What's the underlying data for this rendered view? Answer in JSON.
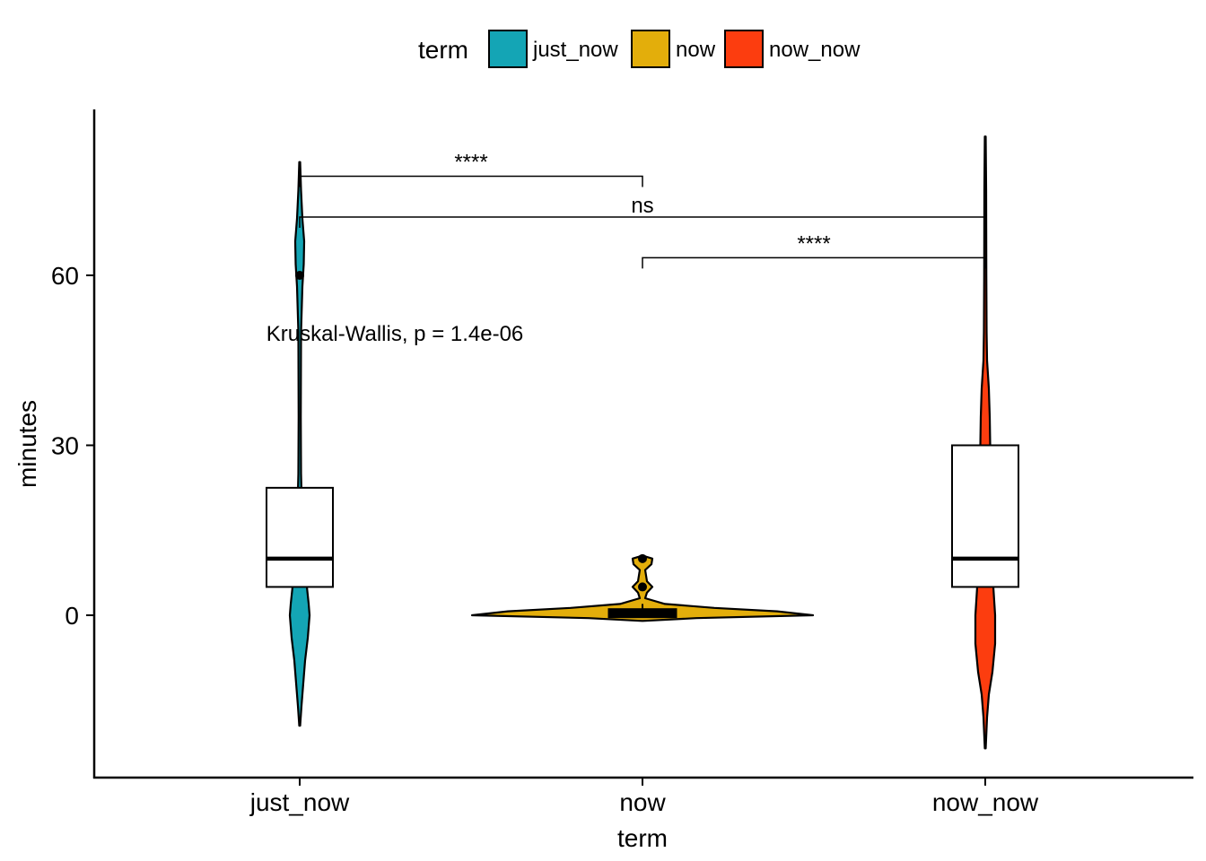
{
  "chart_data": {
    "type": "violin",
    "xlabel": "term",
    "ylabel": "minutes",
    "categories": [
      "just_now",
      "now",
      "now_now"
    ],
    "y_ticks": [
      0,
      30,
      60
    ],
    "ylim": [
      -28.5,
      89.5
    ],
    "grid": false,
    "legend": {
      "title": "term",
      "position": "top",
      "entries": [
        {
          "label": "just_now",
          "color": "#14a5b5"
        },
        {
          "label": "now",
          "color": "#e3ae0b"
        },
        {
          "label": "now_now",
          "color": "#fc3d0f"
        }
      ]
    },
    "series": [
      {
        "category": "just_now",
        "color": "#14a5b5",
        "violin_range": [
          -19.5,
          80
        ],
        "box": {
          "q1": 5,
          "median": 10,
          "q3": 22.5,
          "whisker_low": 0,
          "whisker_high": 60
        },
        "outliers": [
          60
        ]
      },
      {
        "category": "now",
        "color": "#e3ae0b",
        "violin_range": [
          -1,
          10.5
        ],
        "box": {
          "q1": 0,
          "median": 0.5,
          "q3": 1,
          "whisker_low": 0,
          "whisker_high": 2
        },
        "outliers": [
          5,
          10
        ]
      },
      {
        "category": "now_now",
        "color": "#fc3d0f",
        "violin_range": [
          -23.5,
          84.5
        ],
        "box": {
          "q1": 5,
          "median": 10,
          "q3": 30,
          "whisker_low": 0,
          "whisker_high": 60
        },
        "outliers": []
      }
    ],
    "comparisons": [
      {
        "group1": "just_now",
        "group2": "now",
        "label": "****",
        "y": 77.5
      },
      {
        "group1": "just_now",
        "group2": "now_now",
        "label": "ns",
        "y": 70.3
      },
      {
        "group1": "now",
        "group2": "now_now",
        "label": "****",
        "y": 63.1
      }
    ],
    "annotation": "Kruskal-Wallis, p = 1.4e-06"
  }
}
